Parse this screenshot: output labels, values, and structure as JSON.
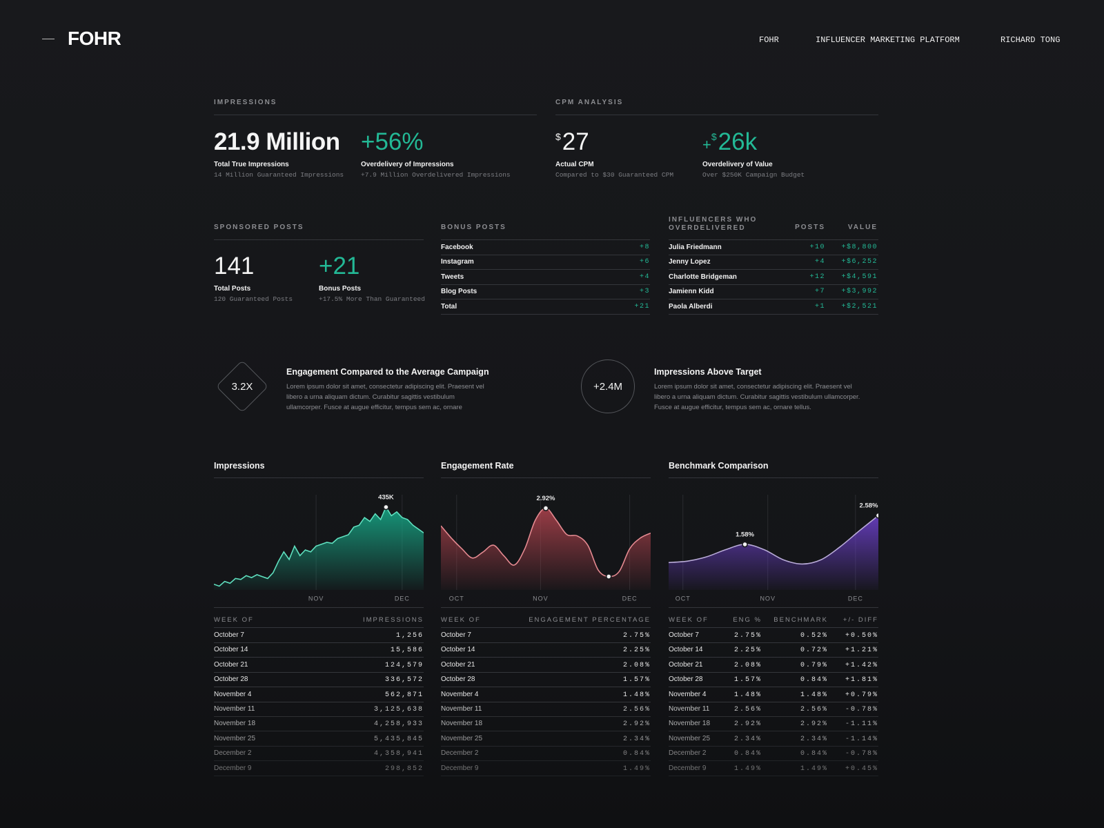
{
  "header": {
    "logo": "FOHR",
    "nav": [
      "FOHR",
      "INFLUENCER MARKETING PLATFORM",
      "RICHARD TONG"
    ]
  },
  "impressions": {
    "heading": "IMPRESSIONS",
    "stats": [
      {
        "value": "21.9 Million",
        "label": "Total True Impressions",
        "note": "14 Million Guaranteed Impressions"
      },
      {
        "value": "+56%",
        "accent": true,
        "label": "Overdelivery of Impressions",
        "note": "+7.9 Million Overdelivered Impressions"
      }
    ]
  },
  "cpm": {
    "heading": "CPM ANALYSIS",
    "stats": [
      {
        "currency": "$",
        "value": "27",
        "label": "Actual CPM",
        "note": "Compared to $30 Guaranteed CPM"
      },
      {
        "sign": "+",
        "currency": "$",
        "value": "26k",
        "accent": true,
        "label": "Overdelivery of Value",
        "note": "Over $250K Campaign Budget"
      }
    ]
  },
  "sponsored": {
    "heading": "SPONSORED POSTS",
    "stats": [
      {
        "value": "141",
        "label": "Total Posts",
        "note": "120 Guaranteed Posts"
      },
      {
        "value": "+21",
        "accent": true,
        "label": "Bonus Posts",
        "note": "+17.5% More Than Guaranteed"
      }
    ]
  },
  "bonus": {
    "heading": "BONUS POSTS",
    "rows": [
      [
        "Facebook",
        "+8"
      ],
      [
        "Instagram",
        "+6"
      ],
      [
        "Tweets",
        "+4"
      ],
      [
        "Blog Posts",
        "+3"
      ],
      [
        "Total",
        "+21"
      ]
    ]
  },
  "influencers": {
    "columns": [
      "INFLUENCERS WHO OVERDELIVERED",
      "POSTS",
      "VALUE"
    ],
    "rows": [
      [
        "Julia Friedmann",
        "+10",
        "+$8,800"
      ],
      [
        "Jenny Lopez",
        "+4",
        "+$6,252"
      ],
      [
        "Charlotte Bridgeman",
        "+12",
        "+$4,591"
      ],
      [
        "Jamienn Kidd",
        "+7",
        "+$3,992"
      ],
      [
        "Paola Alberdi",
        "+1",
        "+$2,521"
      ]
    ]
  },
  "highlights": [
    {
      "badge": "3.2X",
      "shape": "diamond",
      "title": "Engagement Compared to the Average Campaign",
      "text": "Lorem ipsum dolor sit amet, consectetur adipiscing elit. Praesent vel libero a urna aliquam dictum. Curabitur sagittis vestibulum ullamcorper. Fusce at augue efficitur, tempus sem ac, ornare"
    },
    {
      "badge": "+2.4M",
      "shape": "circle",
      "title": "Impressions Above Target",
      "text": "Lorem ipsum dolor sit amet, consectetur adipiscing elit. Praesent vel libero a urna aliquam dictum. Curabitur sagittis vestibulum ullamcorper. Fusce at augue efficitur, tempus sem ac, ornare tellus."
    }
  ],
  "chart_data": [
    {
      "type": "area",
      "title": "Impressions",
      "smooth": false,
      "color": "#17a585",
      "line_color": "#5fe0bf",
      "grid": true,
      "x": [
        0,
        1,
        2,
        3,
        4,
        5,
        6,
        7,
        8,
        9,
        10,
        11,
        12,
        13,
        14,
        15,
        16,
        17,
        18,
        19,
        20,
        21,
        22,
        23,
        24,
        25,
        26,
        27,
        28,
        29,
        30,
        31,
        32,
        33,
        34,
        35,
        36,
        37,
        38,
        39
      ],
      "values": [
        30,
        20,
        45,
        35,
        60,
        55,
        75,
        65,
        80,
        70,
        60,
        90,
        150,
        200,
        160,
        230,
        180,
        210,
        200,
        230,
        240,
        250,
        245,
        270,
        280,
        290,
        330,
        340,
        380,
        360,
        400,
        370,
        435,
        390,
        410,
        380,
        370,
        340,
        320,
        300
      ],
      "value_labels": [
        null,
        null,
        null,
        null,
        null,
        null,
        null,
        null,
        null,
        null,
        null,
        null,
        null,
        null,
        null,
        null,
        null,
        null,
        null,
        null,
        null,
        null,
        null,
        null,
        null,
        null,
        null,
        null,
        null,
        null,
        null,
        null,
        "435K",
        null,
        null,
        null,
        null,
        null,
        null,
        null
      ],
      "markers": [
        32
      ],
      "xlim": [
        0,
        39
      ],
      "xticks": [
        {
          "value": 19,
          "label": "NOV"
        },
        {
          "value": 35,
          "label": "DEC"
        }
      ],
      "ylim": [
        0,
        500
      ]
    },
    {
      "type": "area",
      "title": "Engagement Rate",
      "smooth": true,
      "color": "#a8414b",
      "line_color": "#e58a91",
      "grid": true,
      "x": [
        0,
        1,
        2,
        3,
        4,
        5,
        6,
        7,
        8,
        9,
        10,
        11,
        12,
        13,
        14,
        15,
        16,
        17,
        18,
        19,
        20
      ],
      "values": [
        2.29,
        1.85,
        1.47,
        1.14,
        1.35,
        1.6,
        1.22,
        0.89,
        1.47,
        2.49,
        2.92,
        2.49,
        1.98,
        1.93,
        1.6,
        0.71,
        0.48,
        0.66,
        1.47,
        1.85,
        2.03
      ],
      "value_labels": [
        null,
        null,
        null,
        null,
        null,
        null,
        null,
        null,
        null,
        null,
        "2.92%",
        null,
        null,
        null,
        null,
        null,
        null,
        null,
        null,
        null,
        null
      ],
      "markers": [
        10,
        16
      ],
      "xlim": [
        0,
        20
      ],
      "xticks": [
        {
          "value": 1.5,
          "label": "OCT"
        },
        {
          "value": 9.5,
          "label": "NOV"
        },
        {
          "value": 18,
          "label": "DEC"
        }
      ],
      "ylim": [
        0,
        3.4
      ]
    },
    {
      "type": "area",
      "title": "Benchmark Comparison",
      "smooth": true,
      "color": "#6a3fc6",
      "line_color": "#b9abd8",
      "grid": true,
      "x": [
        0,
        1,
        2,
        3,
        4,
        5,
        6,
        7,
        8,
        9,
        10,
        11
      ],
      "values": [
        0.95,
        1.0,
        1.15,
        1.4,
        1.58,
        1.4,
        1.05,
        0.9,
        1.05,
        1.5,
        2.05,
        2.58
      ],
      "value_labels": [
        null,
        null,
        null,
        null,
        "1.58%",
        null,
        null,
        null,
        null,
        null,
        null,
        "2.58%"
      ],
      "markers": [
        4,
        11
      ],
      "xlim": [
        0,
        11
      ],
      "xticks": [
        {
          "value": 0.75,
          "label": "OCT"
        },
        {
          "value": 5.2,
          "label": "NOV"
        },
        {
          "value": 9.8,
          "label": "DEC"
        }
      ],
      "ylim": [
        0,
        3.3
      ]
    }
  ],
  "tables": [
    {
      "columns": [
        "WEEK OF",
        "IMPRESSIONS"
      ],
      "rows": [
        [
          "October 7",
          "1,256"
        ],
        [
          "October 14",
          "15,586"
        ],
        [
          "October 21",
          "124,579"
        ],
        [
          "October 28",
          "336,572"
        ],
        [
          "November 4",
          "562,871"
        ],
        [
          "November 11",
          "3,125,638"
        ],
        [
          "November 18",
          "4,258,933"
        ],
        [
          "November 25",
          "5,435,845"
        ],
        [
          "December 2",
          "4,358,941"
        ],
        [
          "December 9",
          "298,852"
        ]
      ]
    },
    {
      "columns": [
        "WEEK OF",
        "ENGAGEMENT PERCENTAGE"
      ],
      "rows": [
        [
          "October 7",
          "2.75%"
        ],
        [
          "October 14",
          "2.25%"
        ],
        [
          "October 21",
          "2.08%"
        ],
        [
          "October 28",
          "1.57%"
        ],
        [
          "November 4",
          "1.48%"
        ],
        [
          "November 11",
          "2.56%"
        ],
        [
          "November 18",
          "2.92%"
        ],
        [
          "November 25",
          "2.34%"
        ],
        [
          "December 2",
          "0.84%"
        ],
        [
          "December 9",
          "1.49%"
        ]
      ]
    },
    {
      "columns": [
        "WEEK OF",
        "ENG %",
        "BENCHMARK",
        "+/- DIFF"
      ],
      "rows": [
        [
          "October 7",
          "2.75%",
          "0.52%",
          "+0.50%"
        ],
        [
          "October 14",
          "2.25%",
          "0.72%",
          "+1.21%"
        ],
        [
          "October 21",
          "2.08%",
          "0.79%",
          "+1.42%"
        ],
        [
          "October 28",
          "1.57%",
          "0.84%",
          "+1.81%"
        ],
        [
          "November 4",
          "1.48%",
          "1.48%",
          "+0.79%"
        ],
        [
          "November 11",
          "2.56%",
          "2.56%",
          "-0.78%"
        ],
        [
          "November 18",
          "2.92%",
          "2.92%",
          "-1.11%"
        ],
        [
          "November 25",
          "2.34%",
          "2.34%",
          "-1.14%"
        ],
        [
          "December 2",
          "0.84%",
          "0.84%",
          "-0.78%"
        ],
        [
          "December 9",
          "1.49%",
          "1.49%",
          "+0.45%"
        ]
      ]
    }
  ]
}
